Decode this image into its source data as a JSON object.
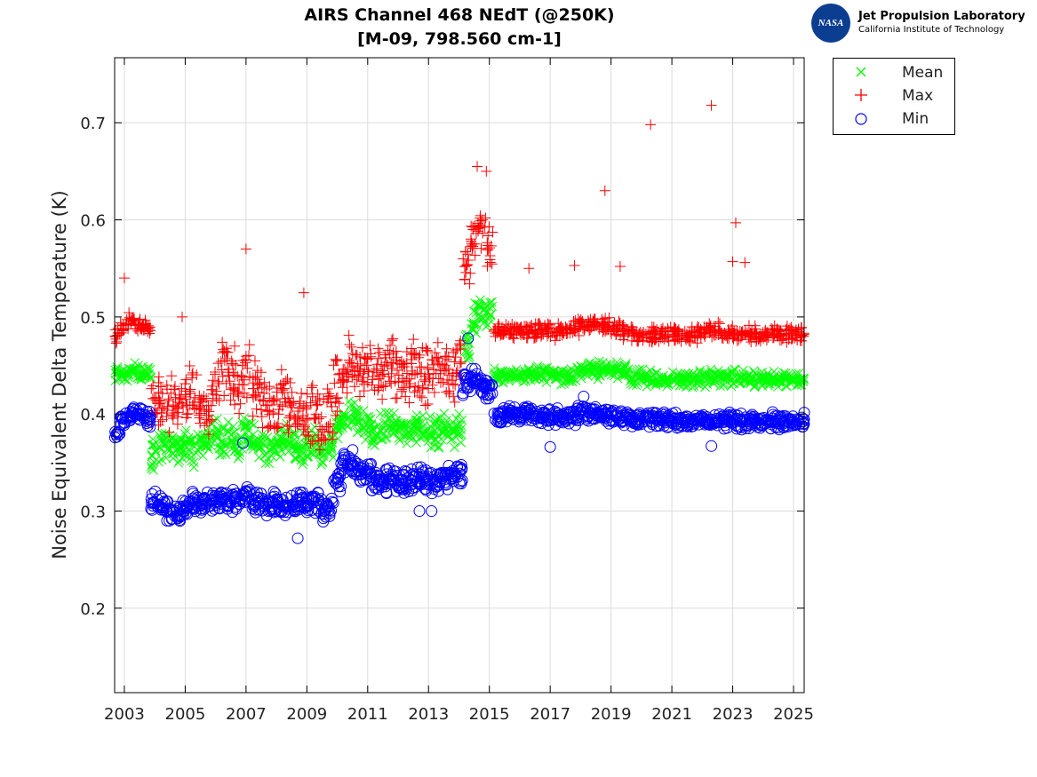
{
  "chart_data": {
    "type": "scatter",
    "title": [
      "AIRS Channel 468 NEdT (@250K)",
      "[M-09, 798.560 cm-1]"
    ],
    "xlabel": "",
    "ylabel": "Noise Equivalent Delta Temperature (K)",
    "xlim": [
      2002.68,
      2025.35
    ],
    "ylim": [
      0.113,
      0.767
    ],
    "xticks": [
      2003,
      2005,
      2007,
      2009,
      2011,
      2013,
      2015,
      2017,
      2019,
      2021,
      2023,
      2025
    ],
    "yticks": [
      0.2,
      0.3,
      0.4,
      0.5,
      0.6,
      0.7
    ],
    "ytick_labels": [
      "0.2",
      "0.3",
      "0.4",
      "0.5",
      "0.6",
      "0.7"
    ],
    "grid": true,
    "legend_placement": "outside-top-right",
    "x_start": 2002.75,
    "x_step": 0.25,
    "series": [
      {
        "name": "Mean",
        "marker": "x",
        "color": "#00ff00",
        "values": [
          0.44,
          0.44,
          0.445,
          0.44,
          0.44,
          0.36,
          0.365,
          0.37,
          0.365,
          0.37,
          0.36,
          0.37,
          0.375,
          0.38,
          0.37,
          0.375,
          0.37,
          0.38,
          0.375,
          0.37,
          0.365,
          0.37,
          0.375,
          0.37,
          0.36,
          0.365,
          0.37,
          0.36,
          0.365,
          0.39,
          0.395,
          0.4,
          0.39,
          0.39,
          0.38,
          0.385,
          0.39,
          0.385,
          0.38,
          0.385,
          0.385,
          0.38,
          0.38,
          0.385,
          0.38,
          0.385,
          0.47,
          0.5,
          0.51,
          0.5,
          0.44,
          0.44,
          0.44,
          0.44,
          0.44,
          0.44,
          0.44,
          0.44,
          0.44,
          0.44,
          0.44,
          0.445,
          0.445,
          0.445,
          0.447,
          0.445,
          0.445,
          0.445,
          0.437,
          0.437,
          0.437,
          0.436,
          0.436,
          0.436,
          0.436,
          0.436,
          0.436,
          0.437,
          0.438,
          0.438,
          0.437,
          0.437,
          0.436,
          0.436,
          0.436,
          0.435,
          0.435,
          0.435,
          0.436,
          0.435,
          0.435
        ]
      },
      {
        "name": "Max",
        "marker": "+",
        "color": "#ff0000",
        "values": [
          0.48,
          0.49,
          0.495,
          0.49,
          0.49,
          0.41,
          0.42,
          0.41,
          0.4,
          0.41,
          0.42,
          0.41,
          0.4,
          0.43,
          0.45,
          0.44,
          0.43,
          0.44,
          0.43,
          0.42,
          0.41,
          0.4,
          0.42,
          0.41,
          0.4,
          0.39,
          0.4,
          0.39,
          0.4,
          0.43,
          0.44,
          0.45,
          0.44,
          0.44,
          0.44,
          0.44,
          0.45,
          0.44,
          0.44,
          0.45,
          0.44,
          0.44,
          0.45,
          0.45,
          0.44,
          0.45,
          0.55,
          0.58,
          0.59,
          0.57,
          0.485,
          0.485,
          0.485,
          0.487,
          0.485,
          0.485,
          0.487,
          0.487,
          0.485,
          0.487,
          0.49,
          0.49,
          0.49,
          0.492,
          0.49,
          0.49,
          0.488,
          0.485,
          0.483,
          0.482,
          0.482,
          0.482,
          0.483,
          0.482,
          0.483,
          0.482,
          0.482,
          0.485,
          0.487,
          0.485,
          0.483,
          0.482,
          0.482,
          0.483,
          0.482,
          0.482,
          0.482,
          0.482,
          0.482,
          0.482,
          0.482
        ],
        "outliers": [
          [
            2003.0,
            0.54
          ],
          [
            2004.9,
            0.5
          ],
          [
            2007.0,
            0.57
          ],
          [
            2008.9,
            0.525
          ],
          [
            2014.6,
            0.655
          ],
          [
            2014.9,
            0.65
          ],
          [
            2016.3,
            0.55
          ],
          [
            2017.8,
            0.553
          ],
          [
            2018.8,
            0.63
          ],
          [
            2019.3,
            0.552
          ],
          [
            2020.3,
            0.698
          ],
          [
            2022.3,
            0.718
          ],
          [
            2023.1,
            0.597
          ],
          [
            2023.0,
            0.557
          ],
          [
            2023.4,
            0.556
          ]
        ]
      },
      {
        "name": "Min",
        "marker": "o",
        "color": "#0000ff",
        "values": [
          0.38,
          0.395,
          0.4,
          0.4,
          0.395,
          0.31,
          0.305,
          0.3,
          0.3,
          0.305,
          0.31,
          0.305,
          0.31,
          0.31,
          0.315,
          0.31,
          0.31,
          0.315,
          0.31,
          0.31,
          0.305,
          0.31,
          0.305,
          0.305,
          0.31,
          0.305,
          0.31,
          0.3,
          0.305,
          0.33,
          0.35,
          0.35,
          0.34,
          0.34,
          0.33,
          0.33,
          0.335,
          0.33,
          0.33,
          0.33,
          0.335,
          0.33,
          0.33,
          0.335,
          0.335,
          0.34,
          0.43,
          0.435,
          0.43,
          0.425,
          0.395,
          0.4,
          0.4,
          0.4,
          0.4,
          0.398,
          0.398,
          0.397,
          0.398,
          0.397,
          0.398,
          0.4,
          0.4,
          0.4,
          0.4,
          0.398,
          0.397,
          0.397,
          0.395,
          0.395,
          0.394,
          0.394,
          0.394,
          0.394,
          0.393,
          0.393,
          0.393,
          0.393,
          0.394,
          0.394,
          0.394,
          0.393,
          0.393,
          0.393,
          0.393,
          0.393,
          0.393,
          0.393,
          0.393,
          0.393,
          0.393
        ],
        "outliers": [
          [
            2006.9,
            0.37
          ],
          [
            2008.7,
            0.272
          ],
          [
            2012.7,
            0.3
          ],
          [
            2013.1,
            0.3
          ],
          [
            2014.3,
            0.478
          ],
          [
            2017.0,
            0.366
          ],
          [
            2018.1,
            0.418
          ],
          [
            2022.3,
            0.367
          ]
        ]
      }
    ]
  },
  "logo": {
    "line1": "Jet Propulsion Laboratory",
    "line2": "California Institute of Technology",
    "seal": "NASA"
  }
}
